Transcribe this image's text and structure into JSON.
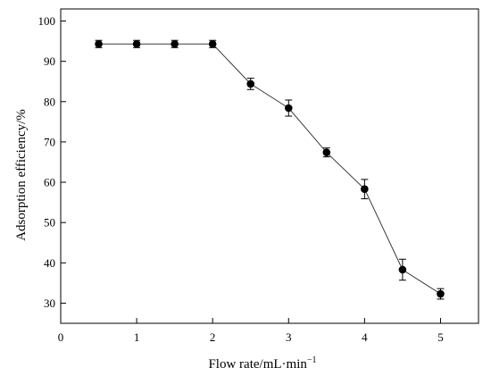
{
  "chart_data": {
    "type": "line",
    "xlabel": "Flow rate/mL·min",
    "xlabel_superscript": "−1",
    "ylabel": "Adsorption efficiency/%",
    "xlim": [
      0,
      5.5
    ],
    "ylim": [
      25,
      103
    ],
    "xticks": [
      0,
      1,
      2,
      3,
      4,
      5
    ],
    "yticks": [
      30,
      40,
      50,
      60,
      70,
      80,
      90,
      100
    ],
    "grid": false,
    "legend": "none",
    "marker": "filled-circle",
    "line_color": "#3a3a3a",
    "marker_color": "#000000",
    "series": [
      {
        "x": [
          0.5,
          1.0,
          1.5,
          2.0,
          2.5,
          3.0,
          3.5,
          4.0,
          4.5,
          5.0
        ],
        "y": [
          94.3,
          94.3,
          94.3,
          94.3,
          84.4,
          78.4,
          67.4,
          58.3,
          38.3,
          32.3
        ],
        "yerr": [
          0.9,
          0.9,
          0.9,
          0.9,
          1.4,
          2.0,
          1.1,
          2.4,
          2.6,
          1.3
        ]
      }
    ]
  }
}
